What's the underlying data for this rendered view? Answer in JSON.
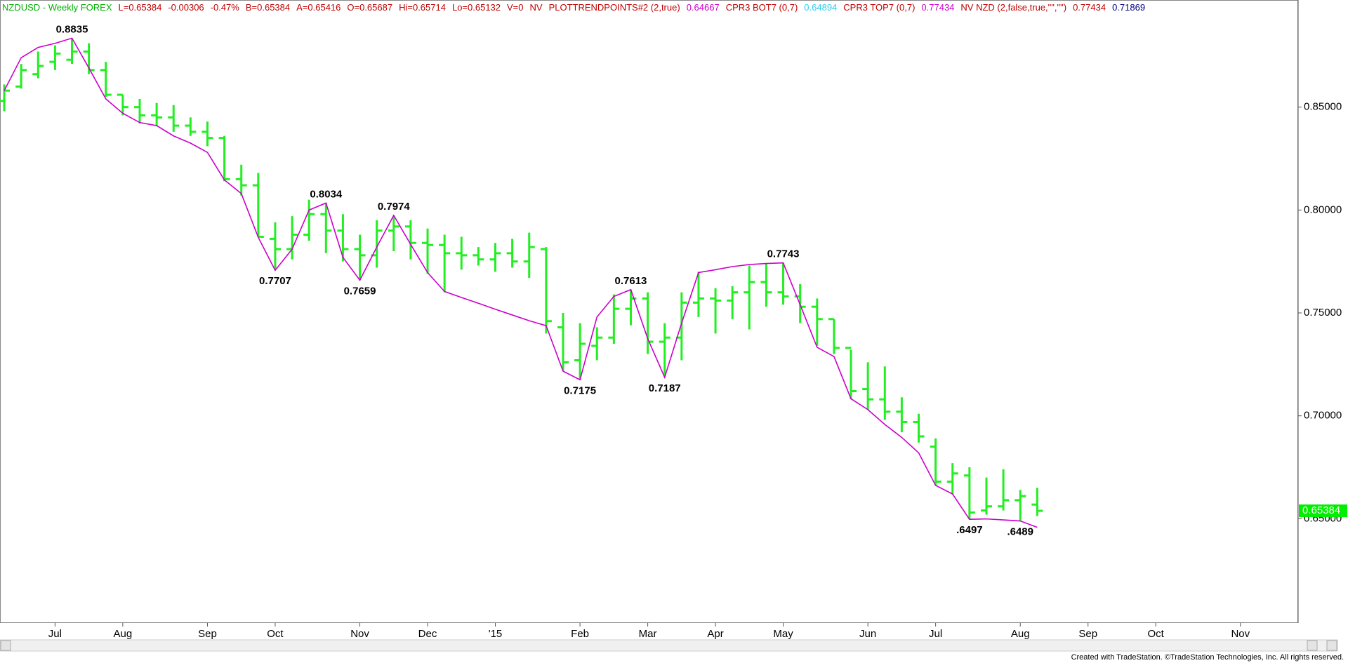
{
  "chart_data": {
    "type": "ohlc",
    "header": [
      {
        "text": "NZDUSD - Weekly FOREX",
        "color": "#00b000"
      },
      {
        "text": "L=0.65384",
        "color": "#c00000"
      },
      {
        "text": "-0.00306",
        "color": "#c00000"
      },
      {
        "text": "-0.47%",
        "color": "#c00000"
      },
      {
        "text": "B=0.65384",
        "color": "#c00000"
      },
      {
        "text": "A=0.65416",
        "color": "#c00000"
      },
      {
        "text": "O=0.65687",
        "color": "#c00000"
      },
      {
        "text": "Hi=0.65714",
        "color": "#c00000"
      },
      {
        "text": "Lo=0.65132",
        "color": "#c00000"
      },
      {
        "text": "V=0",
        "color": "#c00000"
      },
      {
        "text": "NV",
        "color": "#c00000"
      },
      {
        "text": "PLOTTRENDPOINTS#2 (2,true)",
        "color": "#c00000"
      },
      {
        "text": "0.64667",
        "color": "#cc00cc"
      },
      {
        "text": "CPR3 BOT7 (0,7)",
        "color": "#c00000"
      },
      {
        "text": "0.64894",
        "color": "#33ccee"
      },
      {
        "text": "CPR3 TOP7 (0,7)",
        "color": "#c00000"
      },
      {
        "text": "0.77434",
        "color": "#cc00cc"
      },
      {
        "text": "NV NZD (2,false,true,\"\",\"\")",
        "color": "#c00000"
      },
      {
        "text": "0.77434",
        "color": "#c00000"
      },
      {
        "text": "0.71869",
        "color": "#000080"
      }
    ],
    "categories": [
      null,
      null,
      null,
      "Jul",
      null,
      null,
      null,
      "Aug",
      null,
      null,
      null,
      null,
      "Sep",
      null,
      null,
      null,
      "Oct",
      null,
      null,
      null,
      null,
      "Nov",
      null,
      null,
      null,
      "Dec",
      null,
      null,
      null,
      "'15",
      null,
      null,
      null,
      null,
      "Feb",
      null,
      null,
      null,
      "Mar",
      null,
      null,
      null,
      "Apr",
      null,
      null,
      null,
      "May",
      null,
      null,
      null,
      null,
      "Jun",
      null,
      null,
      null,
      "Jul",
      null,
      null,
      null,
      null,
      "Aug",
      null,
      null,
      null,
      "Sep",
      null,
      null,
      null,
      "Oct",
      null,
      null,
      null,
      null,
      "Nov",
      null,
      null,
      null
    ],
    "open": [
      0.853,
      0.86,
      0.866,
      0.872,
      0.873,
      0.877,
      0.868,
      0.856,
      0.85,
      0.846,
      0.845,
      0.841,
      0.838,
      0.835,
      0.815,
      0.812,
      0.786,
      0.781,
      0.788,
      0.798,
      0.79,
      0.781,
      0.778,
      0.79,
      0.792,
      0.784,
      0.783,
      0.779,
      0.778,
      0.776,
      0.779,
      0.775,
      0.781,
      0.743,
      0.727,
      0.734,
      0.738,
      0.752,
      0.757,
      0.736,
      0.738,
      0.755,
      0.757,
      0.756,
      0.76,
      0.765,
      0.76,
      0.758,
      0.753,
      0.747,
      0.733,
      0.713,
      0.708,
      0.702,
      0.697,
      0.685,
      0.668,
      0.671,
      0.654,
      0.656,
      0.659,
      0.65687,
      null,
      null,
      null,
      null,
      null,
      null,
      null,
      null,
      null,
      null,
      null,
      null,
      null,
      null,
      null
    ],
    "high": [
      0.861,
      0.871,
      0.877,
      0.88,
      0.8835,
      0.881,
      0.872,
      0.856,
      0.854,
      0.852,
      0.851,
      0.845,
      0.843,
      0.836,
      0.822,
      0.818,
      0.794,
      0.797,
      0.805,
      0.8034,
      0.798,
      0.788,
      0.795,
      0.7974,
      0.795,
      0.791,
      0.788,
      0.787,
      0.782,
      0.784,
      0.786,
      0.789,
      0.782,
      0.75,
      0.745,
      0.743,
      0.759,
      0.7613,
      0.76,
      0.745,
      0.76,
      0.77,
      0.762,
      0.763,
      0.773,
      0.774,
      0.7743,
      0.764,
      0.757,
      0.747,
      0.732,
      0.726,
      0.724,
      0.709,
      0.701,
      0.689,
      0.677,
      0.675,
      0.67,
      0.674,
      0.664,
      0.665,
      null,
      null,
      null,
      null,
      null,
      null,
      null,
      null,
      null,
      null,
      null,
      null,
      null,
      null,
      null
    ],
    "low": [
      0.848,
      0.859,
      0.864,
      0.868,
      0.871,
      0.866,
      0.855,
      0.846,
      0.842,
      0.841,
      0.838,
      0.836,
      0.831,
      0.814,
      0.807,
      0.787,
      0.7707,
      0.776,
      0.785,
      0.779,
      0.775,
      0.7659,
      0.772,
      0.78,
      0.776,
      0.769,
      0.76,
      0.771,
      0.773,
      0.77,
      0.772,
      0.767,
      0.74,
      0.722,
      0.7175,
      0.727,
      0.735,
      0.744,
      0.73,
      0.7187,
      0.727,
      0.748,
      0.74,
      0.747,
      0.742,
      0.753,
      0.754,
      0.745,
      0.734,
      0.73,
      0.708,
      0.703,
      0.698,
      0.692,
      0.687,
      0.666,
      0.662,
      0.6497,
      0.652,
      0.654,
      0.6489,
      0.6513,
      null,
      null,
      null,
      null,
      null,
      null,
      null,
      null,
      null,
      null,
      null,
      null,
      null,
      null,
      null
    ],
    "close": [
      0.858,
      0.868,
      0.87,
      0.876,
      0.877,
      0.868,
      0.856,
      0.85,
      0.846,
      0.845,
      0.841,
      0.838,
      0.835,
      0.815,
      0.812,
      0.787,
      0.781,
      0.788,
      0.798,
      0.79,
      0.781,
      0.778,
      0.79,
      0.792,
      0.784,
      0.783,
      0.779,
      0.778,
      0.776,
      0.779,
      0.775,
      0.782,
      0.746,
      0.726,
      0.735,
      0.738,
      0.752,
      0.757,
      0.736,
      0.738,
      0.755,
      0.757,
      0.756,
      0.76,
      0.765,
      0.76,
      0.758,
      0.753,
      0.747,
      0.733,
      0.712,
      0.708,
      0.702,
      0.697,
      0.69,
      0.668,
      0.672,
      0.653,
      0.656,
      0.659,
      0.661,
      0.65384,
      null,
      null,
      null,
      null,
      null,
      null,
      null,
      null,
      null,
      null,
      null,
      null,
      null,
      null,
      null
    ],
    "color": "#22ee22",
    "trendline": {
      "color": "#cc00cc",
      "values": [
        0.858,
        0.874,
        0.879,
        0.881,
        0.8835,
        0.869,
        0.854,
        0.847,
        0.8425,
        0.841,
        0.836,
        0.8325,
        0.828,
        0.8146,
        0.808,
        0.7867,
        0.7707,
        0.781,
        0.8,
        0.8034,
        0.777,
        0.7659,
        0.782,
        0.7974,
        0.7833,
        0.7696,
        0.7604,
        0.7575,
        0.7547,
        0.7518,
        0.749,
        0.7462,
        0.7438,
        0.7217,
        0.7175,
        0.748,
        0.758,
        0.7613,
        0.7375,
        0.7187,
        0.745,
        0.7696,
        0.771,
        0.7725,
        0.7735,
        0.774,
        0.7743,
        0.754,
        0.7333,
        0.7288,
        0.7083,
        0.703,
        0.6958,
        0.6895,
        0.682,
        0.6662,
        0.662,
        0.6497,
        0.6499,
        0.6494,
        0.6489,
        0.6458,
        null,
        null,
        null,
        null,
        null,
        null,
        null,
        null,
        null,
        null,
        null,
        null,
        null,
        null,
        null
      ],
      "value_labels": [
        null,
        null,
        null,
        null,
        "0.8835",
        null,
        null,
        null,
        null,
        null,
        null,
        null,
        null,
        null,
        null,
        null,
        "0.7707",
        null,
        null,
        "0.8034",
        null,
        "0.7659",
        null,
        "0.7974",
        null,
        null,
        null,
        null,
        null,
        null,
        null,
        null,
        null,
        null,
        "0.7175",
        null,
        null,
        "0.7613",
        null,
        "0.7187",
        null,
        null,
        null,
        null,
        null,
        null,
        "0.7743",
        null,
        null,
        null,
        null,
        null,
        null,
        null,
        null,
        null,
        null,
        ".6497",
        null,
        null,
        ".6489",
        null,
        null,
        null,
        null,
        null,
        null,
        null,
        null,
        null,
        null,
        null,
        null,
        null,
        null,
        null,
        null
      ]
    },
    "price_box_color": "#00ee00",
    "ylim": [
      0.6,
      0.9
    ],
    "yticks": [
      {
        "value": 0.85,
        "label": "0.85000"
      },
      {
        "value": 0.8,
        "label": "0.80000"
      },
      {
        "value": 0.75,
        "label": "0.75000"
      },
      {
        "value": 0.7,
        "label": "0.70000"
      },
      {
        "value": 0.65,
        "label": "0.65000"
      }
    ],
    "footer": "Created with TradeStation. ©TradeStation Technologies, Inc. All rights reserved."
  }
}
